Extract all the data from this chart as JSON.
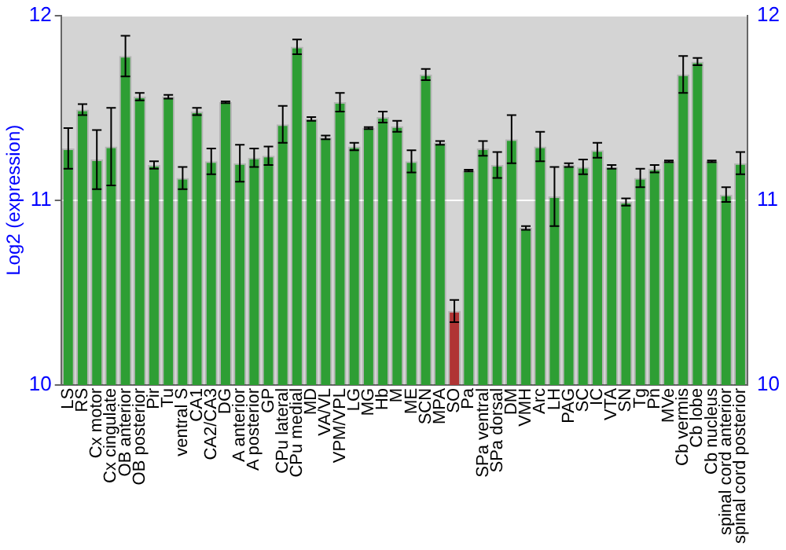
{
  "chart_data": {
    "type": "bar",
    "ylabel": "Log2 (expression)",
    "categories": [
      "LS",
      "RS",
      "Cx motor",
      "Cx cingulate",
      "OB anterior",
      "OB posterior",
      "Pir",
      "Tu",
      "ventral S",
      "CA1",
      "CA2/CA3",
      "DG",
      "A anterior",
      "A posterior",
      "GP",
      "CPu lateral",
      "CPu medial",
      "MD",
      "VA/VL",
      "VPM/VPL",
      "LG",
      "MG",
      "Hb",
      "M",
      "ME",
      "SCN",
      "MPA",
      "SO",
      "Pa",
      "SPa ventral",
      "SPa dorsal",
      "DM",
      "VMH",
      "Arc",
      "LH",
      "PAG",
      "SC",
      "IC",
      "VTA",
      "SN",
      "Tg",
      "Pn",
      "MVe",
      "Cb vermis",
      "Cb lobe",
      "Cb nucleus",
      "spinal cord anterior",
      "spinal cord posterior"
    ],
    "values": [
      11.28,
      11.49,
      11.22,
      11.29,
      11.78,
      11.56,
      11.19,
      11.56,
      11.12,
      11.48,
      11.21,
      11.53,
      11.2,
      11.23,
      11.24,
      11.41,
      11.83,
      11.44,
      11.34,
      11.53,
      11.29,
      11.39,
      11.45,
      11.4,
      11.21,
      11.68,
      11.31,
      10.4,
      11.16,
      11.28,
      11.19,
      11.33,
      10.85,
      11.29,
      11.02,
      11.19,
      11.18,
      11.27,
      11.18,
      10.99,
      11.12,
      11.17,
      11.21,
      11.68,
      11.75,
      11.21,
      11.03,
      11.2
    ],
    "errors": [
      0.11,
      0.03,
      0.16,
      0.21,
      0.11,
      0.02,
      0.02,
      0.01,
      0.06,
      0.02,
      0.07,
      0.005,
      0.1,
      0.05,
      0.05,
      0.1,
      0.04,
      0.01,
      0.01,
      0.05,
      0.02,
      0.005,
      0.03,
      0.03,
      0.06,
      0.03,
      0.01,
      0.06,
      0.005,
      0.04,
      0.07,
      0.13,
      0.01,
      0.08,
      0.16,
      0.01,
      0.04,
      0.04,
      0.01,
      0.02,
      0.05,
      0.02,
      0.005,
      0.1,
      0.02,
      0.005,
      0.04,
      0.06
    ],
    "colors": [
      "#2e9e34",
      "#2e9e34",
      "#2e9e34",
      "#2e9e34",
      "#2e9e34",
      "#2e9e34",
      "#2e9e34",
      "#2e9e34",
      "#2e9e34",
      "#2e9e34",
      "#2e9e34",
      "#2e9e34",
      "#2e9e34",
      "#2e9e34",
      "#2e9e34",
      "#2e9e34",
      "#2e9e34",
      "#2e9e34",
      "#2e9e34",
      "#2e9e34",
      "#2e9e34",
      "#2e9e34",
      "#2e9e34",
      "#2e9e34",
      "#2e9e34",
      "#2e9e34",
      "#2e9e34",
      "#b03434",
      "#2e9e34",
      "#2e9e34",
      "#2e9e34",
      "#2e9e34",
      "#2e9e34",
      "#2e9e34",
      "#2e9e34",
      "#2e9e34",
      "#2e9e34",
      "#2e9e34",
      "#2e9e34",
      "#2e9e34",
      "#2e9e34",
      "#2e9e34",
      "#2e9e34",
      "#2e9e34",
      "#2e9e34",
      "#2e9e34",
      "#2e9e34",
      "#2e9e34"
    ],
    "ylim": [
      10,
      12
    ],
    "yticks": [
      10,
      11,
      12
    ],
    "y2lim": [
      10,
      12
    ],
    "y2ticks": [
      10,
      11,
      12
    ],
    "grid": "y",
    "legend": false
  }
}
